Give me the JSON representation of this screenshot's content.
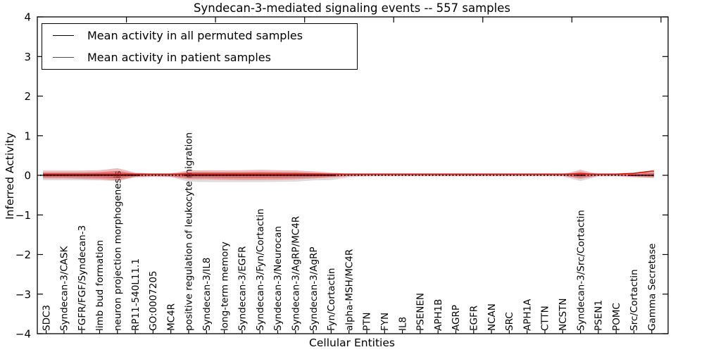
{
  "title": "Syndecan-3-mediated signaling events -- 557 samples",
  "axes": {
    "xlabel": "Cellular Entities",
    "ylabel": "Inferred Activity"
  },
  "legend": {
    "items": [
      {
        "label": "Mean activity in all permuted samples",
        "color": "#000000"
      },
      {
        "label": "Mean activity in patient samples",
        "color": "#ff0000"
      }
    ]
  },
  "chart_data": {
    "type": "line",
    "title": "Syndecan-3-mediated signaling events -- 557 samples",
    "xlabel": "Cellular Entities",
    "ylabel": "Inferred Activity",
    "ylim": [
      -4,
      4
    ],
    "yticks": [
      4,
      3,
      2,
      1,
      0,
      -1,
      -2,
      -3,
      -4
    ],
    "grid": false,
    "legend_position": "upper left",
    "categories": [
      "SDC3",
      "Syndecan-3/CASK",
      "FGFR/FGF/Syndecan-3",
      "limb bud formation",
      "neuron projection morphogenesis",
      "RP11-540L11.1",
      "GO:0007205",
      "MC4R",
      "positive regulation of leukocyte migration",
      "Syndecan-3/IL8",
      "long-term memory",
      "Syndecan-3/EGFR",
      "Syndecan-3/Fyn/Cortactin",
      "Syndecan-3/Neurocan",
      "Syndecan-3/AgRP/MC4R",
      "Syndecan-3/AgRP",
      "Fyn/Cortactin",
      "alpha-MSH/MC4R",
      "PTN",
      "FYN",
      "IL8",
      "PSENEN",
      "APH1B",
      "AGRP",
      "EGFR",
      "NCAN",
      "SRC",
      "APH1A",
      "CTTN",
      "NCSTN",
      "Syndecan-3/Src/Cortactin",
      "PSEN1",
      "POMC",
      "Src/Cortactin",
      "Gamma Secretase"
    ],
    "series": [
      {
        "name": "Mean activity in all permuted samples",
        "color": "#000000",
        "style": "solid",
        "values": [
          0,
          0,
          0,
          0,
          0,
          0,
          0,
          0,
          0,
          0,
          0,
          0,
          0,
          0,
          0,
          0,
          0,
          0,
          0,
          0,
          0,
          0,
          0,
          0,
          0,
          0,
          0,
          0,
          0,
          0,
          0,
          0,
          0,
          0,
          0
        ]
      },
      {
        "name": "Mean activity in patient samples",
        "color": "#ff0000",
        "style": "solid",
        "values": [
          0.027,
          0.027,
          0.027,
          0.027,
          0.027,
          0.03,
          0.03,
          0.03,
          0.03,
          0.03,
          0.03,
          0.03,
          0.03,
          0.03,
          0.03,
          0.03,
          0.03,
          0.03,
          0.03,
          0.03,
          0.03,
          0.03,
          0.03,
          0.03,
          0.03,
          0.03,
          0.03,
          0.03,
          0.03,
          0.03,
          0.035,
          0.03,
          0.03,
          0.05,
          0.105
        ]
      }
    ],
    "bands": [
      {
        "name": "permuted-std",
        "color": "rgba(120,120,120,0.26)",
        "upper": [
          0.045,
          0.045,
          0.045,
          0.05,
          0.06,
          0.03,
          0.02,
          0.025,
          0.08,
          0.08,
          0.075,
          0.07,
          0.07,
          0.07,
          0.06,
          0.05,
          0.045,
          0.02,
          0.01,
          0.008,
          0.008,
          0.008,
          0.008,
          0.008,
          0.008,
          0.008,
          0.008,
          0.008,
          0.008,
          0.01,
          0.06,
          0.01,
          0.01,
          0.025,
          0.045
        ],
        "lower": [
          -0.125,
          -0.125,
          -0.125,
          -0.13,
          -0.15,
          -0.05,
          -0.04,
          -0.045,
          -0.16,
          -0.17,
          -0.17,
          -0.17,
          -0.17,
          -0.165,
          -0.16,
          -0.13,
          -0.12,
          -0.05,
          -0.03,
          -0.025,
          -0.025,
          -0.025,
          -0.025,
          -0.025,
          -0.025,
          -0.025,
          -0.025,
          -0.025,
          -0.025,
          -0.03,
          -0.145,
          -0.03,
          -0.03,
          -0.055,
          -0.075
        ]
      },
      {
        "name": "patient-std-outer",
        "color": "rgba(222,45,45,0.32)",
        "upper": [
          0.12,
          0.12,
          0.12,
          0.13,
          0.18,
          0.07,
          0.035,
          0.045,
          0.125,
          0.125,
          0.125,
          0.13,
          0.14,
          0.13,
          0.125,
          0.1,
          0.07,
          0.035,
          0.023,
          0.021,
          0.021,
          0.021,
          0.021,
          0.021,
          0.021,
          0.021,
          0.021,
          0.021,
          0.021,
          0.025,
          0.14,
          0.025,
          0.027,
          0.055,
          0.115
        ],
        "lower": [
          -0.08,
          -0.08,
          -0.09,
          -0.1,
          -0.13,
          -0.045,
          -0.027,
          -0.035,
          -0.1,
          -0.1,
          -0.11,
          -0.115,
          -0.115,
          -0.11,
          -0.1,
          -0.08,
          -0.055,
          -0.023,
          -0.014,
          -0.012,
          -0.012,
          -0.012,
          -0.012,
          -0.012,
          -0.012,
          -0.012,
          -0.012,
          -0.012,
          -0.012,
          -0.015,
          -0.09,
          -0.015,
          -0.015,
          -0.035,
          -0.055
        ]
      },
      {
        "name": "patient-std-inner",
        "color": "rgba(200,32,32,0.40)",
        "upper": [
          0.07,
          0.07,
          0.07,
          0.08,
          0.11,
          0.042,
          0.021,
          0.027,
          0.075,
          0.075,
          0.075,
          0.078,
          0.084,
          0.078,
          0.075,
          0.06,
          0.042,
          0.021,
          0.014,
          0.013,
          0.013,
          0.013,
          0.013,
          0.013,
          0.013,
          0.013,
          0.013,
          0.013,
          0.013,
          0.015,
          0.084,
          0.015,
          0.016,
          0.033,
          0.07
        ],
        "lower": [
          -0.048,
          -0.048,
          -0.054,
          -0.06,
          -0.078,
          -0.027,
          -0.016,
          -0.021,
          -0.06,
          -0.06,
          -0.066,
          -0.069,
          -0.069,
          -0.066,
          -0.06,
          -0.048,
          -0.033,
          -0.014,
          -0.008,
          -0.007,
          -0.007,
          -0.007,
          -0.007,
          -0.007,
          -0.007,
          -0.007,
          -0.007,
          -0.007,
          -0.007,
          -0.009,
          -0.054,
          -0.009,
          -0.009,
          -0.021,
          -0.033
        ]
      }
    ],
    "zero_line": {
      "y": 0,
      "style": "dotted",
      "color": "#000000"
    }
  }
}
